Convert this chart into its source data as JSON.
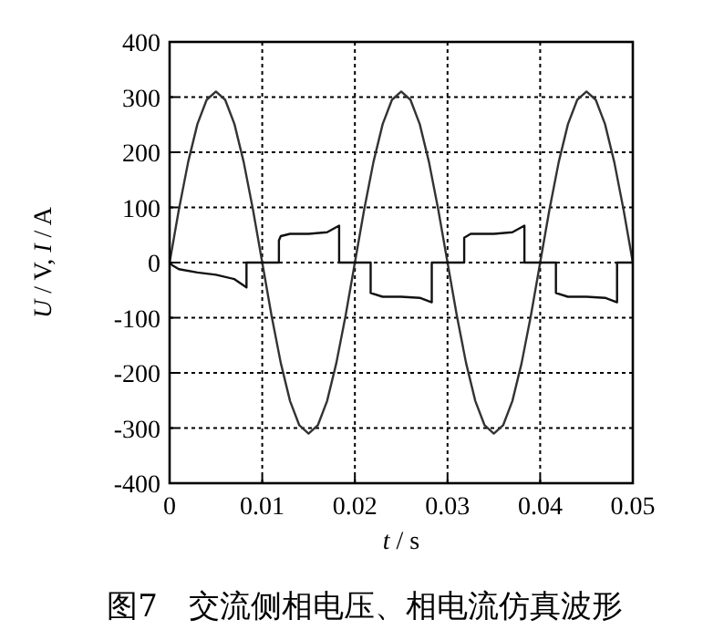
{
  "chart_data": {
    "type": "line",
    "title": "图7　交流侧相电压、相电流仿真波形",
    "xlabel": "*t* / s",
    "ylabel": "*U* / V, *I* / A",
    "xlim": [
      0,
      0.05
    ],
    "ylim": [
      -400,
      400
    ],
    "xticks": [
      0,
      0.01,
      0.02,
      0.03,
      0.04,
      0.05
    ],
    "yticks": [
      -400,
      -300,
      -200,
      -100,
      0,
      100,
      200,
      300,
      400
    ],
    "grid": true,
    "line_style": "solid",
    "marker": "none",
    "series": [
      {
        "color": "#333333",
        "x": [
          0,
          0.001,
          0.002,
          0.003,
          0.004,
          0.005,
          0.006,
          0.007,
          0.008,
          0.009,
          0.01,
          0.011,
          0.012,
          0.013,
          0.014,
          0.015,
          0.016,
          0.017,
          0.018,
          0.019,
          0.02,
          0.021,
          0.022,
          0.023,
          0.024,
          0.025,
          0.026,
          0.027,
          0.028,
          0.029,
          0.03,
          0.031,
          0.032,
          0.033,
          0.034,
          0.035,
          0.036,
          0.037,
          0.038,
          0.039,
          0.04,
          0.041,
          0.042,
          0.043,
          0.044,
          0.045,
          0.046,
          0.047,
          0.048,
          0.049,
          0.05
        ],
        "values": [
          0,
          96,
          182,
          251,
          295,
          310,
          295,
          251,
          182,
          96,
          0,
          -96,
          -182,
          -251,
          -295,
          -310,
          -295,
          -251,
          -182,
          -96,
          0,
          96,
          182,
          251,
          295,
          310,
          295,
          251,
          182,
          96,
          0,
          -96,
          -182,
          -251,
          -295,
          -310,
          -295,
          -251,
          -182,
          -96,
          0,
          96,
          182,
          251,
          295,
          310,
          295,
          251,
          182,
          96,
          0
        ]
      },
      {
        "color": "#111111",
        "x": [
          0,
          0.0003,
          0.001,
          0.003,
          0.005,
          0.007,
          0.0083,
          0.0083,
          0.0118,
          0.0118,
          0.012,
          0.013,
          0.015,
          0.017,
          0.0183,
          0.0183,
          0.0217,
          0.0217,
          0.023,
          0.025,
          0.027,
          0.0283,
          0.0283,
          0.0318,
          0.0318,
          0.0325,
          0.035,
          0.037,
          0.0383,
          0.0383,
          0.0417,
          0.0417,
          0.043,
          0.045,
          0.047,
          0.0483,
          0.0483,
          0.05
        ],
        "values": [
          0,
          -5,
          -12,
          -18,
          -22,
          -30,
          -45,
          0,
          0,
          40,
          48,
          52,
          52,
          55,
          67,
          0,
          0,
          -55,
          -62,
          -62,
          -64,
          -72,
          0,
          0,
          45,
          52,
          52,
          55,
          67,
          0,
          0,
          -55,
          -62,
          -62,
          -64,
          -72,
          0,
          0
        ]
      }
    ]
  }
}
